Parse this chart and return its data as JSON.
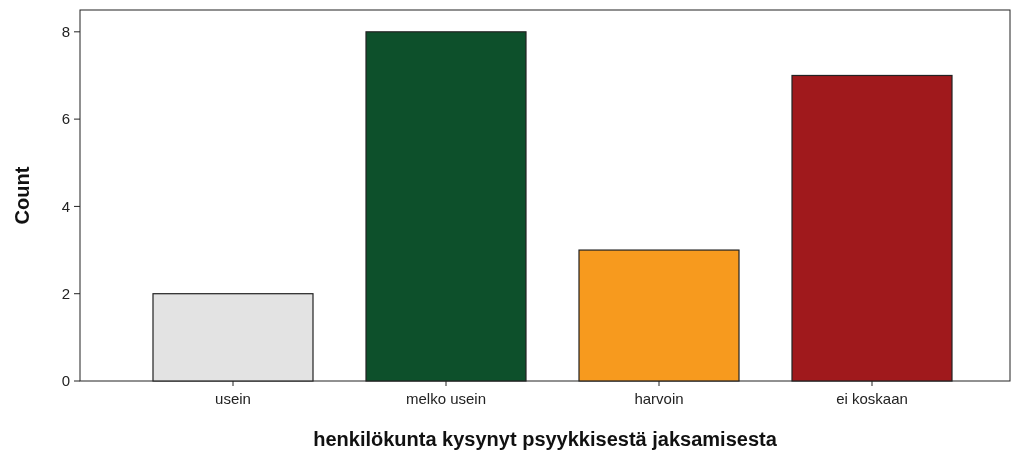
{
  "chart_data": {
    "type": "bar",
    "xlabel": "henkilökunta kysynyt psyykkisestä jaksamisesta",
    "ylabel": "Count",
    "categories": [
      "usein",
      "melko usein",
      "harvoin",
      "ei koskaan"
    ],
    "values": [
      2,
      8,
      3,
      7
    ],
    "colors": [
      "#e3e3e3",
      "#0d502b",
      "#f79a1e",
      "#a0191c"
    ],
    "ylim": [
      0,
      8.5
    ],
    "yticks": [
      0,
      2,
      4,
      6,
      8
    ],
    "grid": false
  }
}
